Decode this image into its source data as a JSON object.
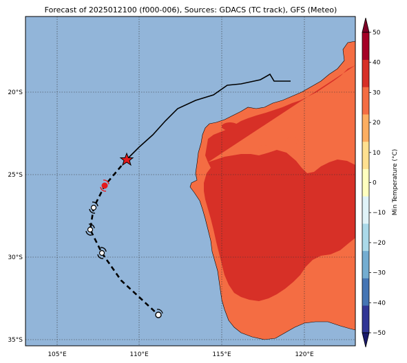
{
  "title": "Forecast of 2025012100 (f000-006), Sources: GDACS (TC track), GFS (Meteo)",
  "map": {
    "lon_ticks": [
      "105°E",
      "110°E",
      "115°E",
      "120°E"
    ],
    "lat_ticks": [
      "20°S",
      "25°S",
      "30°S",
      "35°S"
    ],
    "colors": {
      "ocean": "#92b5d9",
      "land_warm": "#f46d43",
      "land_hot": "#d73027",
      "coast": "#000000",
      "grid": "#333333"
    }
  },
  "colorbar": {
    "label": "Min Temperature (°C)",
    "ticks": [
      "50",
      "40",
      "30",
      "20",
      "10",
      "0",
      "−10",
      "−20",
      "−30",
      "−40",
      "−50"
    ],
    "colors": [
      "#313695",
      "#4575b4",
      "#74add1",
      "#abd9e9",
      "#e0f3f8",
      "#ffffbf",
      "#fee090",
      "#fdae61",
      "#f46d43",
      "#d73027",
      "#a50026"
    ],
    "under_color": "#1a1a6b",
    "over_color": "#7f0026"
  },
  "track": {
    "past_color": "#000000",
    "forecast_color": "#000000",
    "current_marker": "star",
    "current_color": "#e41a1c",
    "forecast_marker_icon": "cyclone-icon"
  }
}
